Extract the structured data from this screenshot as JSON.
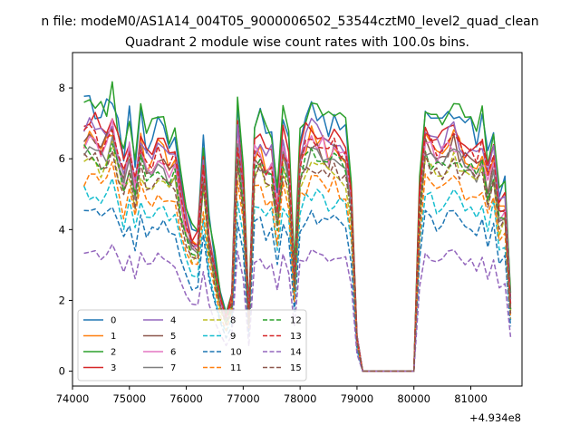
{
  "chart_data": {
    "type": "line",
    "suptitle": "n file: modeM0/AS1A14_004T05_9000006502_53544cztM0_level2_quad_clean",
    "title": "Quadrant 2 module wise count rates with 100.0s bins.",
    "xlabel": "",
    "ylabel": "",
    "x_offset_label": "+4.934e8",
    "xlim": [
      74000,
      81900
    ],
    "ylim": [
      -0.42,
      9.0
    ],
    "xticks": [
      74000,
      75000,
      76000,
      77000,
      78000,
      79000,
      80000,
      81000
    ],
    "xtick_labels": [
      "74000",
      "75000",
      "76000",
      "77000",
      "78000",
      "79000",
      "80000",
      "81000"
    ],
    "yticks": [
      0,
      2,
      4,
      6,
      8
    ],
    "ytick_labels": [
      "0",
      "2",
      "4",
      "6",
      "8"
    ],
    "grid": false,
    "legend_position": "lower-left",
    "legend_columns": 4,
    "x_start": 74200,
    "x_step": 100,
    "series": [
      {
        "name": "0",
        "color": "#1f77b4",
        "dash": "solid",
        "base": 7.45,
        "seed": 1
      },
      {
        "name": "1",
        "color": "#ff7f0e",
        "dash": "solid",
        "base": 6.6,
        "seed": 2
      },
      {
        "name": "2",
        "color": "#2ca02c",
        "dash": "solid",
        "base": 7.55,
        "seed": 3
      },
      {
        "name": "3",
        "color": "#d62728",
        "dash": "solid",
        "base": 7.0,
        "seed": 4
      },
      {
        "name": "4",
        "color": "#9467bd",
        "dash": "solid",
        "base": 6.8,
        "seed": 5
      },
      {
        "name": "5",
        "color": "#8c564b",
        "dash": "solid",
        "base": 6.4,
        "seed": 6
      },
      {
        "name": "6",
        "color": "#e377c2",
        "dash": "solid",
        "base": 6.5,
        "seed": 7
      },
      {
        "name": "7",
        "color": "#7f7f7f",
        "dash": "solid",
        "base": 6.2,
        "seed": 8
      },
      {
        "name": "8",
        "color": "#bcbd22",
        "dash": "dashed",
        "base": 5.9,
        "seed": 9
      },
      {
        "name": "9",
        "color": "#17becf",
        "dash": "dashed",
        "base": 5.0,
        "seed": 10
      },
      {
        "name": "10",
        "color": "#1f77b4",
        "dash": "dashed",
        "base": 4.4,
        "seed": 11
      },
      {
        "name": "11",
        "color": "#ff7f0e",
        "dash": "dashed",
        "base": 5.4,
        "seed": 12
      },
      {
        "name": "12",
        "color": "#2ca02c",
        "dash": "dashed",
        "base": 6.1,
        "seed": 13
      },
      {
        "name": "13",
        "color": "#d62728",
        "dash": "dashed",
        "base": 6.6,
        "seed": 14
      },
      {
        "name": "14",
        "color": "#9467bd",
        "dash": "dashed",
        "base": 3.35,
        "seed": 15
      },
      {
        "name": "15",
        "color": "#8c564b",
        "dash": "dashed",
        "base": 5.9,
        "seed": 16
      }
    ],
    "shape": [
      1.0,
      1.02,
      1.0,
      0.97,
      1.0,
      1.05,
      0.93,
      0.83,
      0.96,
      0.79,
      0.97,
      0.87,
      0.9,
      0.95,
      0.93,
      0.88,
      0.9,
      0.72,
      0.62,
      0.54,
      0.55,
      0.87,
      0.57,
      0.43,
      0.3,
      0.22,
      0.3,
      1.0,
      0.77,
      0.22,
      0.94,
      0.95,
      0.88,
      0.9,
      0.68,
      0.96,
      0.86,
      0.38,
      0.9,
      0.96,
      1.0,
      0.98,
      0.97,
      0.93,
      0.97,
      0.94,
      0.92,
      0.72,
      0.14,
      0,
      0,
      0,
      0,
      0,
      0,
      0,
      0,
      0,
      0,
      0.72,
      1.02,
      0.97,
      0.93,
      0.95,
      0.98,
      1.0,
      0.96,
      0.93,
      0.92,
      0.88,
      0.95,
      0.8,
      0.93,
      0.68,
      0.72,
      0.28
    ]
  }
}
